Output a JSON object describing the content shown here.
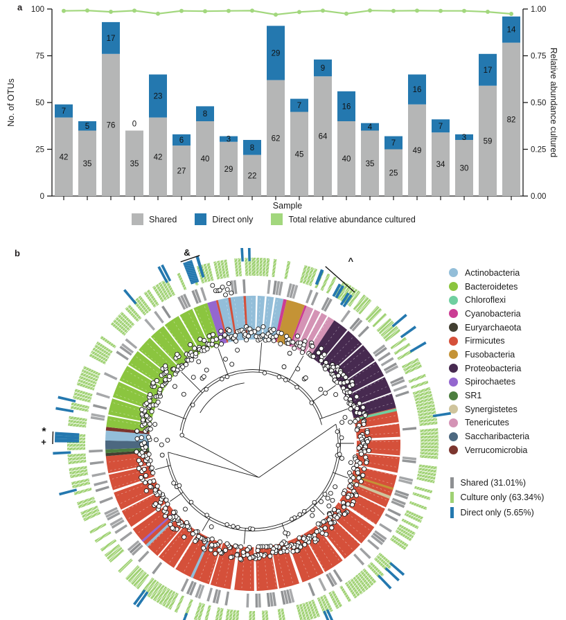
{
  "figure": {
    "panel_a_label": "a",
    "panel_b_label": "b"
  },
  "colors": {
    "shared_gray": "#b5b6b6",
    "direct_blue": "#2478af",
    "culture_green": "#a2d77d",
    "ring_gray": "#8e9092",
    "ring_green": "#9fd173",
    "ring_blue": "#2478af",
    "text": "#1a1a1a"
  },
  "panel_a": {
    "y_left_title": "No. of OTUs",
    "y_right_title": "Relative abundance cultured",
    "x_title": "Sample",
    "legend": [
      {
        "label": "Shared",
        "color_key": "shared_gray"
      },
      {
        "label": "Direct only",
        "color_key": "direct_blue"
      },
      {
        "label": "Total relative abundance cultured",
        "color_key": "culture_green"
      }
    ],
    "chart_data": {
      "type": "stacked-bar+line",
      "n_samples": 20,
      "xlabel": "Sample",
      "y_left": {
        "label": "No. of OTUs",
        "ticks": [
          0,
          25,
          50,
          75,
          100
        ],
        "range": [
          0,
          100
        ]
      },
      "y_right": {
        "label": "Relative abundance cultured",
        "ticks": [
          "0.00",
          "0.25",
          "0.50",
          "0.75",
          "1.00"
        ],
        "range": [
          0,
          1
        ]
      },
      "series": [
        {
          "name": "Shared",
          "values": [
            42,
            35,
            76,
            35,
            42,
            27,
            40,
            29,
            22,
            62,
            45,
            64,
            40,
            35,
            25,
            49,
            34,
            30,
            59,
            82
          ]
        },
        {
          "name": "Direct only",
          "values": [
            7,
            5,
            17,
            0,
            23,
            6,
            8,
            3,
            8,
            29,
            7,
            9,
            16,
            4,
            7,
            16,
            7,
            3,
            17,
            14
          ]
        }
      ],
      "line_series": {
        "name": "Total relative abundance cultured",
        "values": [
          0.99,
          0.992,
          0.985,
          0.991,
          0.975,
          0.99,
          0.988,
          0.99,
          0.991,
          0.97,
          0.984,
          0.991,
          0.975,
          0.992,
          0.99,
          0.991,
          0.99,
          0.99,
          0.985,
          0.974
        ]
      }
    }
  },
  "panel_b": {
    "phyla_legend": [
      {
        "name": "Actinobacteria",
        "color": "#93bed9"
      },
      {
        "name": "Bacteroidetes",
        "color": "#8bc53f"
      },
      {
        "name": "Chloroflexi",
        "color": "#6fcfa0"
      },
      {
        "name": "Cyanobacteria",
        "color": "#cb3d94"
      },
      {
        "name": "Euryarchaeota",
        "color": "#423f31"
      },
      {
        "name": "Firmicutes",
        "color": "#d5503a"
      },
      {
        "name": "Fusobacteria",
        "color": "#c49336"
      },
      {
        "name": "Proteobacteria",
        "color": "#472a50"
      },
      {
        "name": "Spirochaetes",
        "color": "#9467cf"
      },
      {
        "name": "SR1",
        "color": "#4c7e3e"
      },
      {
        "name": "Synergistetes",
        "color": "#cfc49c"
      },
      {
        "name": "Tenericutes",
        "color": "#d493b5"
      },
      {
        "name": "Saccharibacteria",
        "color": "#4c6880"
      },
      {
        "name": "Verrucomicrobia",
        "color": "#7c352e"
      }
    ],
    "ring_legend": [
      {
        "label": "Shared (31.01%)",
        "color_key": "ring_gray"
      },
      {
        "label": "Culture only (63.34%)",
        "color_key": "ring_green"
      },
      {
        "label": "Direct only (5.65%)",
        "color_key": "ring_blue"
      }
    ],
    "ring_fractions": {
      "shared": 0.3101,
      "culture_only": 0.6334,
      "direct_only": 0.0565
    },
    "random_seed": 20,
    "wedges": [
      {
        "phylum": "Actinobacteria",
        "a1": -13.7,
        "a2": 12
      },
      {
        "phylum": "Cyanobacteria",
        "a1": 12,
        "a2": 13.3
      },
      {
        "phylum": "Fusobacteria",
        "a1": 13.3,
        "a2": 20.6
      },
      {
        "phylum": "Cyanobacteria",
        "a1": 20.6,
        "a2": 21.4
      },
      {
        "phylum": "Tenericutes",
        "a1": 21.4,
        "a2": 33.5
      },
      {
        "phylum": "Proteobacteria",
        "a1": 33.5,
        "a2": 76
      },
      {
        "phylum": "Firmicutes",
        "a1": 76,
        "a2": 265
      },
      {
        "phylum": "Euryarchaeota",
        "a1": 265,
        "a2": 266.2
      },
      {
        "phylum": "SR1",
        "a1": 266.2,
        "a2": 267.6
      },
      {
        "phylum": "Saccharibacteria",
        "a1": 267.6,
        "a2": 271.1
      },
      {
        "phylum": "Actinobacteria",
        "a1": 271.1,
        "a2": 275
      },
      {
        "phylum": "Verrucomicrobia",
        "a1": 275,
        "a2": 276.4
      },
      {
        "phylum": "Bacteroidetes",
        "a1": 276.4,
        "a2": 342
      },
      {
        "phylum": "Spirochaetes",
        "a1": 342,
        "a2": 345.5
      },
      {
        "phylum": "Firmicutes",
        "a1": 345.5,
        "a2": 346.3
      }
    ],
    "stripes": [
      {
        "a": 350.8,
        "w": 0.9,
        "phylum": "Firmicutes"
      },
      {
        "a": 356.8,
        "w": 0.9,
        "phylum": "Firmicutes"
      },
      {
        "a": 1.5,
        "w": 0.7,
        "color": "#ffffff"
      },
      {
        "a": 5.0,
        "w": 0.7,
        "color": "#ffffff"
      },
      {
        "a": 8.5,
        "w": 0.7,
        "color": "#ffffff"
      },
      {
        "a": 24.5,
        "w": 0.6,
        "color": "#ffffff"
      },
      {
        "a": 27.5,
        "w": 0.6,
        "color": "#ffffff"
      },
      {
        "a": 30.5,
        "w": 0.6,
        "color": "#ffffff"
      },
      {
        "a": 40,
        "w": 0.55,
        "color": "#ffffff"
      },
      {
        "a": 48,
        "w": 0.55,
        "color": "#ffffff"
      },
      {
        "a": 56,
        "w": 0.55,
        "color": "#ffffff"
      },
      {
        "a": 63,
        "w": 0.55,
        "color": "#ffffff"
      },
      {
        "a": 70,
        "w": 0.55,
        "color": "#ffffff"
      },
      {
        "a": 76.8,
        "w": 1.1,
        "phylum": "Chloroflexi"
      },
      {
        "a": 108,
        "w": 0.9,
        "phylum": "Fusobacteria"
      },
      {
        "a": 111.5,
        "w": 1.2,
        "phylum": "Synergistetes"
      },
      {
        "a": 82,
        "w": 0.6,
        "color": "#ffffff"
      },
      {
        "a": 88,
        "w": 1.1,
        "color": "#ffffff"
      },
      {
        "a": 95,
        "w": 0.6,
        "color": "#ffffff"
      },
      {
        "a": 102,
        "w": 1.0,
        "color": "#ffffff"
      },
      {
        "a": 116,
        "w": 0.6,
        "color": "#ffffff"
      },
      {
        "a": 124,
        "w": 1.2,
        "color": "#ffffff"
      },
      {
        "a": 133,
        "w": 0.6,
        "color": "#ffffff"
      },
      {
        "a": 142,
        "w": 1.0,
        "color": "#ffffff"
      },
      {
        "a": 151,
        "w": 0.6,
        "color": "#ffffff"
      },
      {
        "a": 161,
        "w": 1.3,
        "color": "#ffffff"
      },
      {
        "a": 170,
        "w": 0.6,
        "color": "#ffffff"
      },
      {
        "a": 179,
        "w": 1.0,
        "color": "#ffffff"
      },
      {
        "a": 188,
        "w": 1.5,
        "color": "#ffffff"
      },
      {
        "a": 197,
        "w": 0.6,
        "color": "#ffffff"
      },
      {
        "a": 212,
        "w": 0.8,
        "color": "#ffffff"
      },
      {
        "a": 220,
        "w": 0.6,
        "color": "#ffffff"
      },
      {
        "a": 235,
        "w": 1.0,
        "color": "#ffffff"
      },
      {
        "a": 243,
        "w": 0.6,
        "color": "#ffffff"
      },
      {
        "a": 251,
        "w": 1.0,
        "color": "#ffffff"
      },
      {
        "a": 258,
        "w": 0.6,
        "color": "#ffffff"
      },
      {
        "a": 204.5,
        "w": 1.1,
        "phylum": "Actinobacteria"
      },
      {
        "a": 226,
        "w": 1.1,
        "phylum": "Actinobacteria"
      },
      {
        "a": 228.5,
        "w": 0.9,
        "phylum": "Spirochaetes"
      },
      {
        "a": 281,
        "w": 0.6,
        "color": "#ffffff"
      },
      {
        "a": 288,
        "w": 0.6,
        "color": "#ffffff"
      },
      {
        "a": 295,
        "w": 0.6,
        "color": "#ffffff"
      },
      {
        "a": 302,
        "w": 0.6,
        "color": "#ffffff"
      },
      {
        "a": 309,
        "w": 0.6,
        "color": "#ffffff"
      },
      {
        "a": 316,
        "w": 0.6,
        "color": "#ffffff"
      },
      {
        "a": 323,
        "w": 0.6,
        "color": "#ffffff"
      },
      {
        "a": 330,
        "w": 0.6,
        "color": "#ffffff"
      },
      {
        "a": 336,
        "w": 0.6,
        "color": "#ffffff"
      }
    ],
    "annotations": [
      {
        "symbol": "&",
        "a": 341,
        "r": 292,
        "line": [
          [
            338.3,
            282
          ],
          [
            344.2,
            282
          ]
        ],
        "bars": [
          {
            "a": 340.2,
            "w": 2.8,
            "r1": 246,
            "r2": 279
          },
          {
            "a": 343.4,
            "w": 0.9,
            "r1": 250,
            "r2": 282
          }
        ]
      },
      {
        "symbol": "^",
        "a": 28.2,
        "r": 299,
        "line": [
          [
            22.3,
            276
          ],
          [
            34.0,
            263
          ]
        ],
        "bars": [
          {
            "a": 21.8,
            "w": 1.0,
            "r1": 247,
            "r2": 270
          },
          {
            "a": 28.7,
            "w": 0.9,
            "r1": 242,
            "r2": 262
          },
          {
            "a": 29.8,
            "w": 0.9,
            "r1": 242,
            "r2": 262
          },
          {
            "a": 32.5,
            "w": 0.9,
            "r1": 237,
            "r2": 257
          },
          {
            "a": 33.6,
            "w": 0.9,
            "r1": 237,
            "r2": 257
          }
        ]
      },
      {
        "symbol": "*",
        "a": 273.2,
        "r": 302,
        "bars": []
      },
      {
        "symbol": "+",
        "a": 270.5,
        "r": 302,
        "line": [
          [
            269.8,
            289
          ],
          [
            273.4,
            289
          ]
        ],
        "bars": [
          {
            "a": 270.8,
            "w": 1.0,
            "r1": 251,
            "r2": 286
          },
          {
            "a": 271.8,
            "w": 1.0,
            "r1": 251,
            "r2": 286
          },
          {
            "a": 272.8,
            "w": 1.0,
            "r1": 251,
            "r2": 286
          }
        ]
      }
    ]
  }
}
